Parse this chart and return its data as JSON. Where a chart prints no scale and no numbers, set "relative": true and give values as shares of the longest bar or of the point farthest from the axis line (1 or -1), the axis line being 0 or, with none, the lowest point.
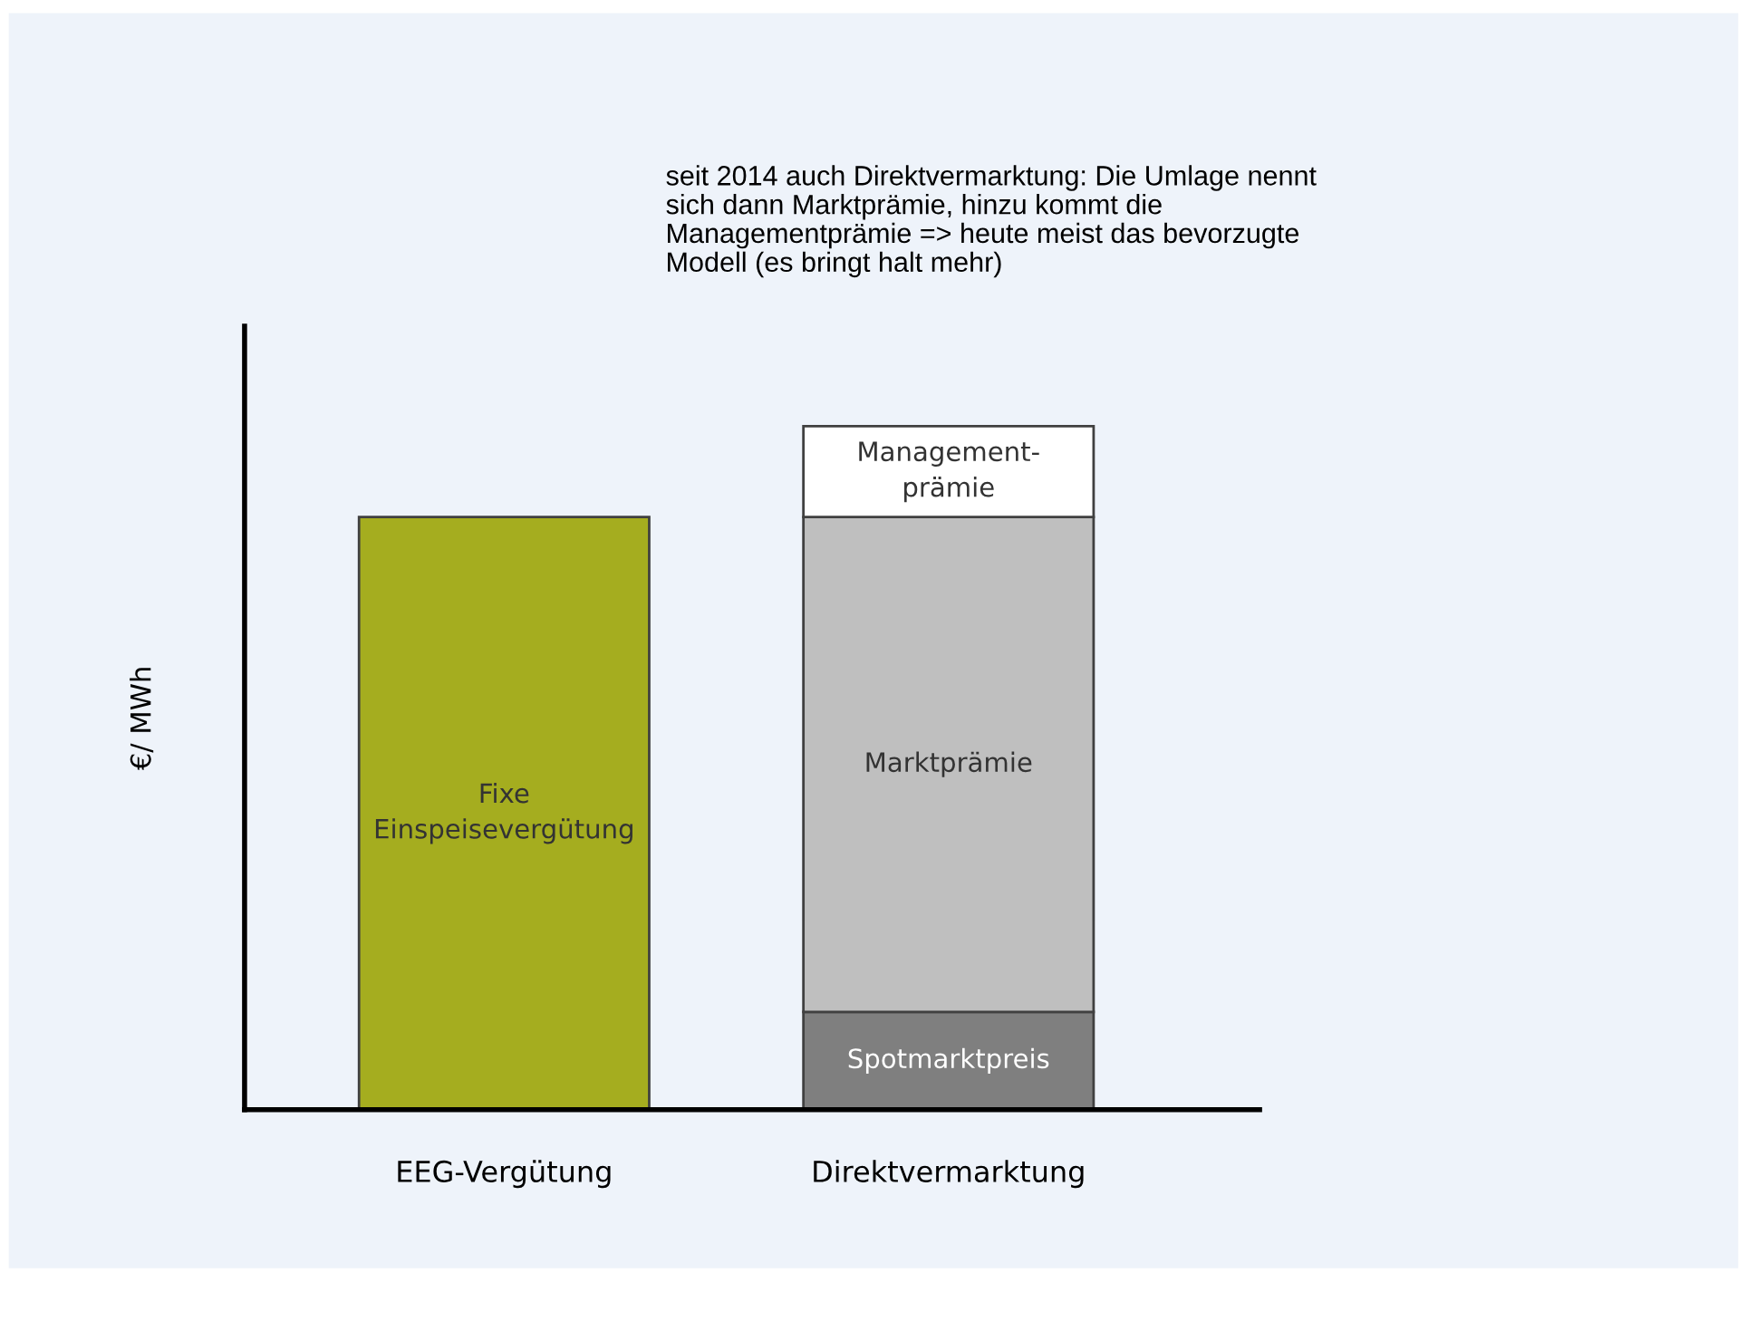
{
  "chart_data": {
    "type": "bar",
    "stacked": true,
    "relative": true,
    "ylabel": "€/ MWh",
    "categories": [
      "EEG-Vergütung",
      "Direktvermarktung"
    ],
    "series": [
      {
        "name": "Fixe\nEinspeisevergütung",
        "color": "#a5ad1f",
        "values": [
          0.867,
          null
        ]
      },
      {
        "name": "Spotmarktpreis",
        "color": "#7f7f7f",
        "values": [
          null,
          0.143
        ]
      },
      {
        "name": "Marktprämie",
        "color": "#bfbfbf",
        "values": [
          null,
          0.724
        ]
      },
      {
        "name": "Management-\nprämie",
        "color": "#ffffff",
        "values": [
          null,
          0.133
        ]
      }
    ],
    "annotations": [
      "seit 2014 auch Direktvermarktung: Die Umlage nennt\nsich dann Marktprämie, hinzu kommt die\nManagementprämie => heute meist das bevorzugte\nModell (es bringt halt mehr)"
    ],
    "grid": false,
    "tick_labels": "x"
  }
}
